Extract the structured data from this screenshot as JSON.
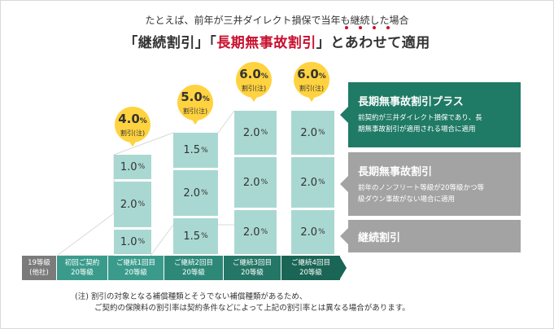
{
  "subtitle": "たとえば、前年が三井ダイレクト損保で当年も継続した場合",
  "title": {
    "part1": "「継続割引」「",
    "part2": "長期無事故割引",
    "part3": "」",
    "part4": "とあわせて適用"
  },
  "columns": [
    {
      "label1": "19等級",
      "label2": "(他社)"
    },
    {
      "label1": "初回ご契約",
      "label2": "20等級"
    },
    {
      "label1": "ご継続1回目",
      "label2": "20等級",
      "bubble": {
        "value": "4.0",
        "unit": "%",
        "note": "割引(注)"
      },
      "segments": [
        {
          "value": "1.0",
          "unit": "%"
        },
        {
          "value": "2.0",
          "unit": "%"
        },
        {
          "value": "1.0",
          "unit": "%"
        }
      ]
    },
    {
      "label1": "ご継続2回目",
      "label2": "20等級",
      "bubble": {
        "value": "5.0",
        "unit": "%",
        "note": "割引(注)"
      },
      "segments": [
        {
          "value": "1.5",
          "unit": "%"
        },
        {
          "value": "2.0",
          "unit": "%"
        },
        {
          "value": "1.5",
          "unit": "%"
        }
      ]
    },
    {
      "label1": "ご継続3回目",
      "label2": "20等級",
      "bubble": {
        "value": "6.0",
        "unit": "%",
        "note": "割引(注)"
      },
      "segments": [
        {
          "value": "2.0",
          "unit": "%"
        },
        {
          "value": "2.0",
          "unit": "%"
        },
        {
          "value": "2.0",
          "unit": "%"
        }
      ]
    },
    {
      "label1": "ご継続4回目",
      "label2": "20等級",
      "bubble": {
        "value": "6.0",
        "unit": "%",
        "note": "割引(注)"
      },
      "segments": [
        {
          "value": "2.0",
          "unit": "%"
        },
        {
          "value": "2.0",
          "unit": "%"
        },
        {
          "value": "2.0",
          "unit": "%"
        }
      ]
    }
  ],
  "panels": [
    {
      "heading": "長期無事故割引プラス",
      "desc1": "前契約が三井ダイレクト損保であり、長",
      "desc2": "期無事故割引が適用される場合に適用",
      "color": "#1f7a66"
    },
    {
      "heading": "長期無事故割引",
      "desc1": "前年のノンフリート等級が20等級かつ等",
      "desc2": "級ダウン事故がない場合に適用",
      "color": "#a3a3a3"
    },
    {
      "heading": "継続割引",
      "desc1": "",
      "desc2": "",
      "color": "#a3a3a3"
    }
  ],
  "note": {
    "line1": "(注) 割引の対象となる補償種類とそうでない補償種類があるため、",
    "line2": "ご契約の保険料の割引率は契約条件などによって上記の割引率とは異なる場合があります。"
  },
  "colors": {
    "accent_red": "#c8102e",
    "segment": "#a9d8d2",
    "bubble": "#ffd23f",
    "dark_green": "#1f7a66",
    "teal": "#3a9b8c",
    "grey": "#7b7b7b"
  }
}
